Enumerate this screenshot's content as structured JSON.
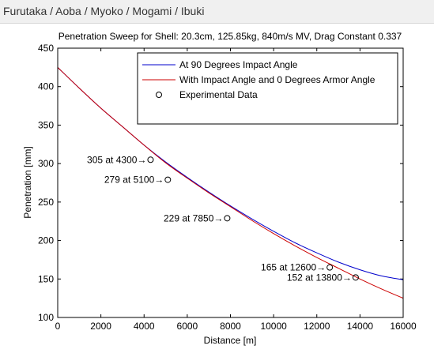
{
  "page": {
    "header_title": "Furutaka / Aoba / Myoko / Mogami / Ibuki"
  },
  "chart_data": {
    "type": "line",
    "title": "Penetration Sweep for Shell: 20.3cm, 125.85kg, 840m/s MV, Drag Constant 0.337",
    "xlabel": "Distance [m]",
    "ylabel": "Penetration [mm]",
    "xlim": [
      0,
      16000
    ],
    "ylim": [
      100,
      450
    ],
    "xticks": [
      0,
      2000,
      4000,
      6000,
      8000,
      10000,
      12000,
      14000,
      16000
    ],
    "yticks": [
      100,
      150,
      200,
      250,
      300,
      350,
      400,
      450
    ],
    "grid": false,
    "legend_position": "top-right",
    "series": [
      {
        "name": "At 90 Degrees Impact Angle",
        "color": "#0000cc",
        "marker": "none",
        "x": [
          0,
          1000,
          2000,
          3000,
          4000,
          5000,
          6000,
          7000,
          8000,
          9000,
          10000,
          11000,
          12000,
          13000,
          14000,
          15000,
          16000
        ],
        "y": [
          425,
          398,
          372,
          348,
          324,
          302,
          282,
          263,
          245,
          228,
          212,
          197,
          184,
          172,
          162,
          154,
          149
        ]
      },
      {
        "name": "With Impact Angle and 0 Degrees Armor Angle",
        "color": "#cc0000",
        "marker": "none",
        "x": [
          0,
          1000,
          2000,
          3000,
          4000,
          5000,
          6000,
          7000,
          8000,
          9000,
          10000,
          11000,
          12000,
          13000,
          14000,
          15000,
          16000
        ],
        "y": [
          425,
          398,
          372,
          348,
          324,
          301,
          281,
          262,
          244,
          226,
          209,
          193,
          178,
          164,
          150,
          137,
          125
        ]
      },
      {
        "name": "Experimental Data",
        "color": "#000000",
        "marker": "circle",
        "x": [
          4300,
          5100,
          7850,
          12600,
          13800
        ],
        "y": [
          305,
          279,
          229,
          165,
          152
        ]
      }
    ],
    "annotations": [
      {
        "text": "305 at 4300",
        "x": 4300,
        "y": 305
      },
      {
        "text": "279 at 5100",
        "x": 5100,
        "y": 279
      },
      {
        "text": "229 at 7850",
        "x": 7850,
        "y": 229
      },
      {
        "text": "165 at 12600",
        "x": 12600,
        "y": 165
      },
      {
        "text": "152 at 13800",
        "x": 13800,
        "y": 152
      }
    ]
  }
}
